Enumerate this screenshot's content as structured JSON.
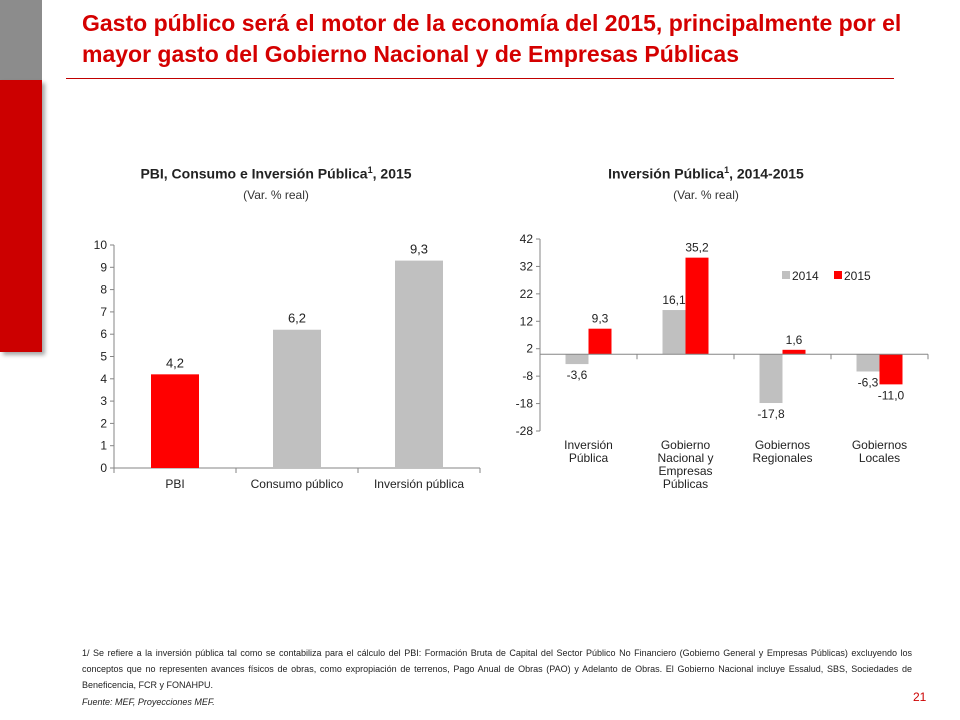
{
  "slide": {
    "title": "Gasto público será el motor de la economía del 2015, principalmente por el mayor gasto del Gobierno Nacional y de Empresas Públicas",
    "footnote": "1/ Se refiere a la inversión pública tal como se contabiliza para el cálculo del PBI: Formación Bruta de Capital del Sector Público No Financiero (Gobierno General y Empresas Públicas) excluyendo los conceptos que no representen avances físicos de obras, como expropiación de terrenos, Pago Anual de Obras (PAO) y Adelanto de Obras. El Gobierno Nacional incluye Essalud, SBS, Sociedades de Beneficencia, FCR y FONAHPU.",
    "source": "Fuente: MEF, Proyecciones MEF.",
    "page_number": "21",
    "colors": {
      "accent": "#cc0000",
      "grey": "#808080",
      "bar_grey": "#c0c0c0",
      "bar_red": "#ff0000"
    }
  },
  "chart_data": [
    {
      "type": "bar",
      "title": "PBI, Consumo e Inversión Pública",
      "title_sup": "1",
      "title_suffix": ", 2015",
      "subtitle": "(Var. % real)",
      "categories": [
        "PBI",
        "Consumo público",
        "Inversión pública"
      ],
      "values": [
        4.2,
        6.2,
        9.3
      ],
      "value_labels": [
        "4,2",
        "6,2",
        "9,3"
      ],
      "bar_colors": [
        "#ff0000",
        "#c0c0c0",
        "#c0c0c0"
      ],
      "ylim": [
        0,
        10
      ],
      "yticks": [
        "0",
        "1",
        "2",
        "3",
        "4",
        "5",
        "6",
        "7",
        "8",
        "9",
        "10"
      ],
      "grid": false,
      "legend": "none"
    },
    {
      "type": "bar",
      "title": "Inversión Pública",
      "title_sup": "1",
      "title_suffix": ", 2014-2015",
      "subtitle": "(Var. % real)",
      "categories": [
        "Inversión Pública",
        "Gobierno Nacional y Empresas Públicas",
        "Gobiernos Regionales",
        "Gobiernos Locales"
      ],
      "category_lines": [
        [
          "Inversión",
          "Pública"
        ],
        [
          "Gobierno",
          "Nacional y",
          "Empresas",
          "Públicas"
        ],
        [
          "Gobiernos",
          "Regionales"
        ],
        [
          "Gobiernos",
          "Locales"
        ]
      ],
      "series": [
        {
          "name": "2014",
          "color": "#c0c0c0",
          "values": [
            -3.6,
            16.1,
            -17.8,
            -6.3
          ],
          "labels": [
            "-3,6",
            "16,1",
            "-17,8",
            "-6,3"
          ]
        },
        {
          "name": "2015",
          "color": "#ff0000",
          "values": [
            9.3,
            35.2,
            1.6,
            -11.0
          ],
          "labels": [
            "9,3",
            "35,2",
            "1,6",
            "-11,0"
          ]
        }
      ],
      "ylim": [
        -28,
        42
      ],
      "yticks": [
        "-28",
        "-18",
        "-8",
        "2",
        "12",
        "22",
        "32",
        "42"
      ],
      "grid": false,
      "legend": "top-right"
    }
  ]
}
